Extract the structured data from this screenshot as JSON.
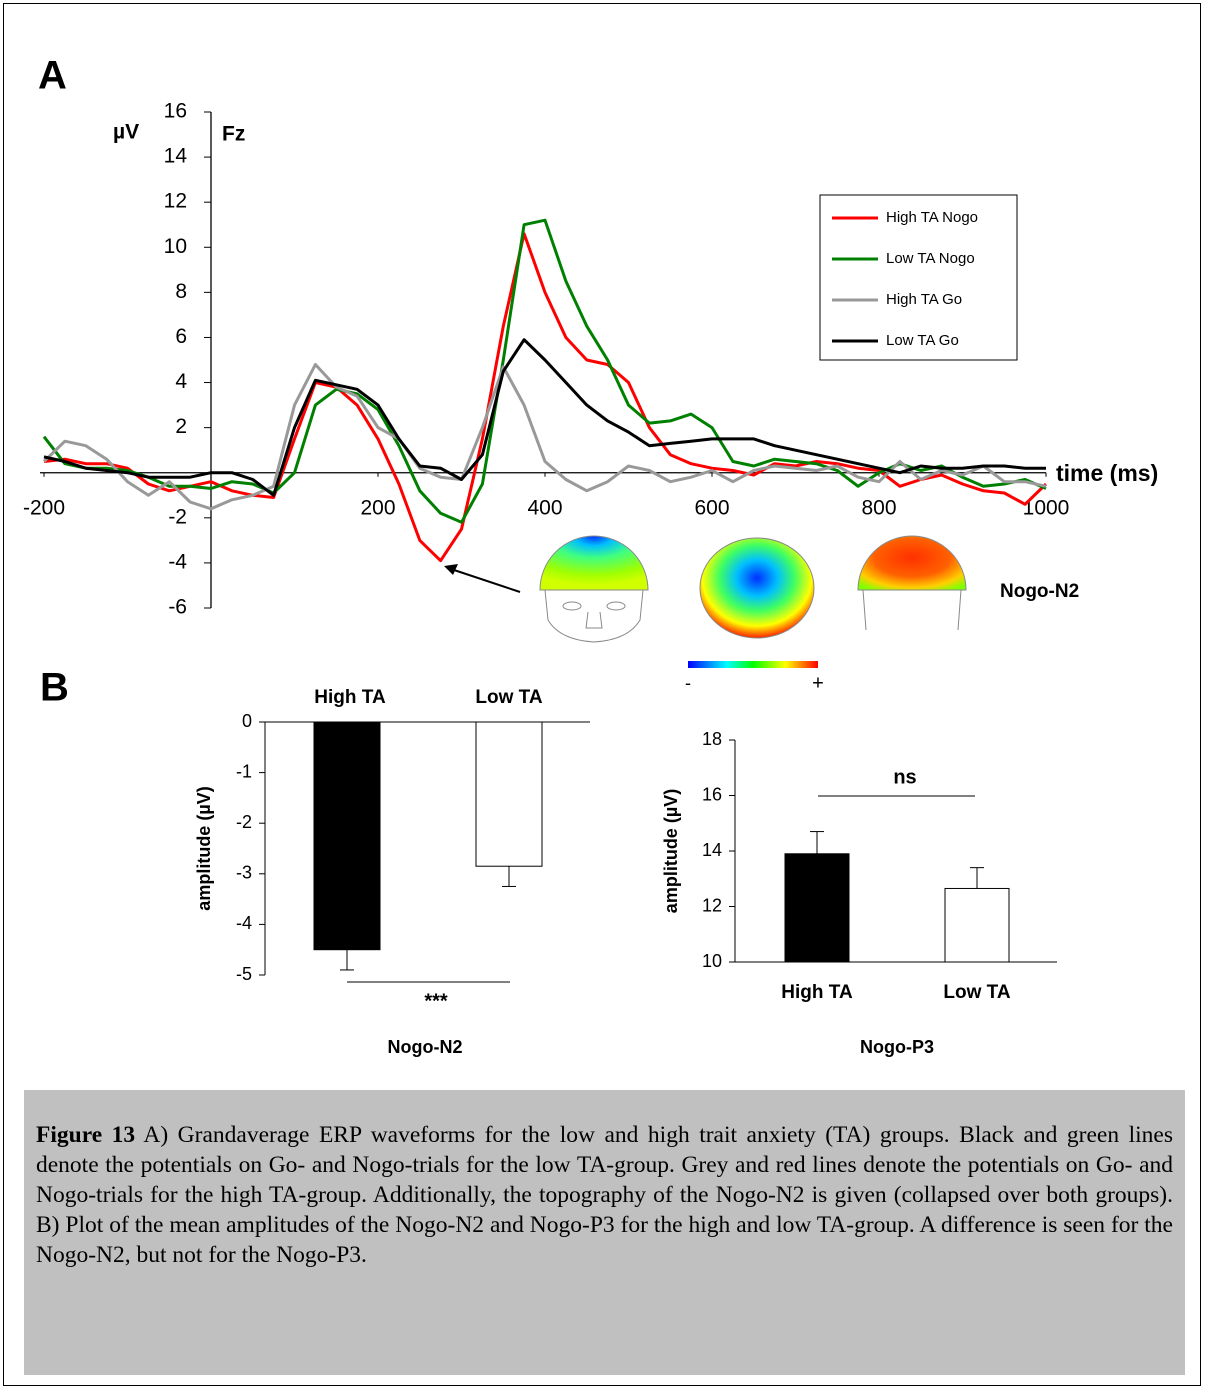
{
  "chart_data": [
    {
      "type": "line",
      "panel": "A",
      "ylabel": "µV",
      "subtitle": "Fz",
      "xlabel": "time (ms)",
      "annotations": [
        "Nogo-N2",
        "-",
        "+"
      ],
      "x": [
        -200,
        -175,
        -150,
        -125,
        -100,
        -75,
        -50,
        -25,
        0,
        25,
        50,
        75,
        100,
        125,
        150,
        175,
        200,
        225,
        250,
        275,
        300,
        325,
        350,
        375,
        400,
        425,
        450,
        475,
        500,
        525,
        550,
        575,
        600,
        625,
        650,
        675,
        700,
        725,
        750,
        775,
        800,
        825,
        850,
        875,
        900,
        925,
        950,
        975,
        1000
      ],
      "xlim": [
        -200,
        1000
      ],
      "xticks": [
        -200,
        200,
        400,
        600,
        800,
        1000
      ],
      "ylim": [
        -6,
        16
      ],
      "yticks": [
        -6,
        -4,
        -2,
        2,
        4,
        6,
        8,
        10,
        12,
        14,
        16
      ],
      "series": [
        {
          "name": "High TA Nogo",
          "color": "#ff0000",
          "values": [
            0.5,
            0.6,
            0.4,
            0.4,
            0.2,
            -0.5,
            -0.8,
            -0.6,
            -0.4,
            -0.8,
            -1.0,
            -1.1,
            1.5,
            4.0,
            3.8,
            3.0,
            1.5,
            -0.5,
            -3.0,
            -3.9,
            -2.5,
            1.5,
            6.5,
            10.6,
            8.0,
            6.0,
            5.0,
            4.8,
            4.0,
            2.0,
            0.8,
            0.4,
            0.2,
            0.1,
            -0.1,
            0.4,
            0.3,
            0.5,
            0.4,
            0.2,
            0.1,
            -0.6,
            -0.3,
            -0.1,
            -0.5,
            -0.8,
            -0.9,
            -1.4,
            -0.5
          ]
        },
        {
          "name": "Low TA Nogo",
          "color": "#008000",
          "values": [
            1.6,
            0.4,
            0.2,
            0.2,
            0.1,
            -0.2,
            -0.6,
            -0.6,
            -0.7,
            -0.4,
            -0.5,
            -0.9,
            0.0,
            3.0,
            3.7,
            3.5,
            2.8,
            1.2,
            -0.8,
            -1.8,
            -2.2,
            -0.5,
            5.0,
            11.0,
            11.2,
            8.5,
            6.5,
            5.0,
            3.0,
            2.2,
            2.3,
            2.6,
            2.0,
            0.5,
            0.3,
            0.6,
            0.5,
            0.4,
            0.1,
            -0.6,
            0.0,
            0.4,
            0.1,
            0.3,
            -0.2,
            -0.6,
            -0.5,
            -0.3,
            -0.7
          ]
        },
        {
          "name": "High TA Go",
          "color": "#999999",
          "values": [
            0.5,
            1.4,
            1.2,
            0.6,
            -0.4,
            -1.0,
            -0.4,
            -1.3,
            -1.6,
            -1.2,
            -1.0,
            -0.6,
            3.0,
            4.8,
            3.8,
            3.4,
            2.0,
            1.5,
            0.2,
            -0.2,
            -0.3,
            2.0,
            4.7,
            3.0,
            0.5,
            -0.3,
            -0.8,
            -0.4,
            0.3,
            0.1,
            -0.4,
            -0.2,
            0.1,
            -0.4,
            0.1,
            0.3,
            0.2,
            0.1,
            0.3,
            -0.2,
            -0.4,
            0.5,
            -0.3,
            0.1,
            -0.1,
            0.3,
            -0.4,
            -0.4,
            -0.6
          ]
        },
        {
          "name": "Low TA Go",
          "color": "#000000",
          "values": [
            0.7,
            0.5,
            0.2,
            0.1,
            0.0,
            -0.2,
            -0.2,
            -0.2,
            0.0,
            0.0,
            -0.3,
            -1.0,
            2.0,
            4.1,
            3.9,
            3.7,
            3.0,
            1.5,
            0.3,
            0.2,
            -0.3,
            0.8,
            4.5,
            5.9,
            5.0,
            4.0,
            3.0,
            2.3,
            1.8,
            1.2,
            1.3,
            1.4,
            1.5,
            1.5,
            1.5,
            1.2,
            1.0,
            0.8,
            0.6,
            0.4,
            0.2,
            0.0,
            0.3,
            0.2,
            0.2,
            0.3,
            0.3,
            0.2,
            0.2
          ]
        }
      ]
    },
    {
      "type": "bar",
      "panel": "B",
      "ylabel": "amplitude (µV)",
      "xlabel": "Nogo-N2",
      "annotation": "***",
      "categories": [
        "High TA",
        "Low TA"
      ],
      "values": [
        -4.5,
        -2.85
      ],
      "errors": [
        0.4,
        0.4
      ],
      "colors": [
        "#000000",
        "#ffffff"
      ],
      "ylim": [
        -5,
        0
      ],
      "yticks": [
        0,
        -1,
        -2,
        -3,
        -4,
        -5
      ]
    },
    {
      "type": "bar",
      "ylabel": "amplitude (µV)",
      "xlabel": "Nogo-P3",
      "annotation": "ns",
      "categories": [
        "High TA",
        "Low TA"
      ],
      "values": [
        13.9,
        12.65
      ],
      "errors": [
        0.8,
        0.75
      ],
      "colors": [
        "#000000",
        "#ffffff"
      ],
      "ylim": [
        10,
        18
      ],
      "yticks": [
        10,
        12,
        14,
        16,
        18
      ]
    }
  ],
  "caption": {
    "label": "Figure 13",
    "text": "A) Grandaverage ERP waveforms for the low and high trait anxiety (TA) groups. Black and green lines denote the potentials on Go- and Nogo-trials for the low TA-group. Grey and red lines denote the potentials on Go- and Nogo-trials for the high TA-group. Additionally, the topography of the Nogo-N2 is given (collapsed over both groups). B) Plot of the mean amplitudes of the Nogo-N2 and Nogo-P3 for the high and low TA-group. A difference is seen for the Nogo-N2, but not for the Nogo-P3."
  }
}
